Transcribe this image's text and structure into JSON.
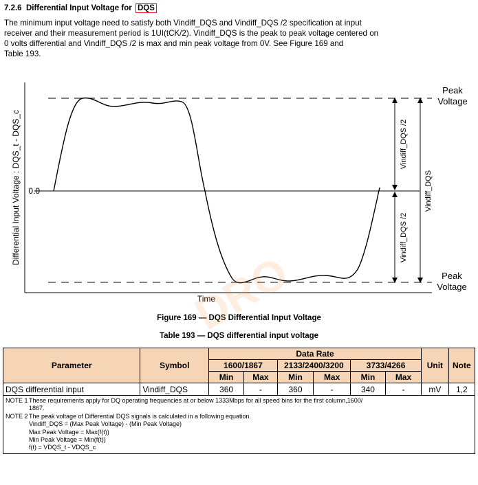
{
  "section": {
    "number": "7.2.6",
    "title": "Differential Input Voltage for",
    "highlight": "DQS"
  },
  "intro": [
    "The minimum input voltage need to satisfy both Vindiff_DQS and Vindiff_DQS /2 specification at input",
    "receiver and their measurement period is 1UI(tCK/2). Vindiff_DQS is the peak to peak voltage centered on",
    "0 volts differential and Vindiff_DQS /2 is max and min peak voltage from 0V. See Figure 169 and",
    "Table 193."
  ],
  "figure": {
    "y_axis_label": "Differential Input Voltage : DQS_t - DQS_c",
    "x_axis_label": "Time",
    "zero_label": "0.0",
    "peak_top_line1": "Peak",
    "peak_top_line2": "Voltage",
    "peak_bottom_line1": "Peak",
    "peak_bottom_line2": "Voltage",
    "half_upper": "Vindiff_DQS /2",
    "half_lower": "Vindiff_DQS /2",
    "full": "Vindiff_DQS",
    "caption": "Figure 169 — DQS Differential Input Voltage"
  },
  "table": {
    "caption": "Table 193 — DQS differential input voltage",
    "headers": {
      "parameter": "Parameter",
      "symbol": "Symbol",
      "data_rate": "Data Rate",
      "unit": "Unit",
      "note": "Note",
      "groups": [
        "1600/1867",
        "2133/2400/3200",
        "3733/4266"
      ],
      "min": "Min",
      "max": "Max"
    },
    "rows": [
      {
        "parameter": "DQS differential input",
        "symbol": "Vindiff_DQS",
        "values": [
          "360",
          "-",
          "360",
          "-",
          "340",
          "-"
        ],
        "unit": "mV",
        "note": "1,2"
      }
    ],
    "notes": {
      "n1_label": "NOTE 1",
      "n1_line1": "These requirements apply for DQ operating frequencies at or below 1333Mbps for all speed bins for the first column,1600/",
      "n1_line2": "1867.",
      "n2_label": "NOTE 2",
      "n2_line1": "The peak voltage of Differential DQS signals is calculated in a following equation.",
      "eq1": "Vindiff_DQS = (Max Peak Voltage) - (Min Peak Voltage)",
      "eq2": "Max Peak Voltage = Max(f(t))",
      "eq3": "Min Peak Voltage = Min(f(t))",
      "eq4": "f(t) = VDQS_t - VDQS_c"
    }
  },
  "watermark": "DRO"
}
